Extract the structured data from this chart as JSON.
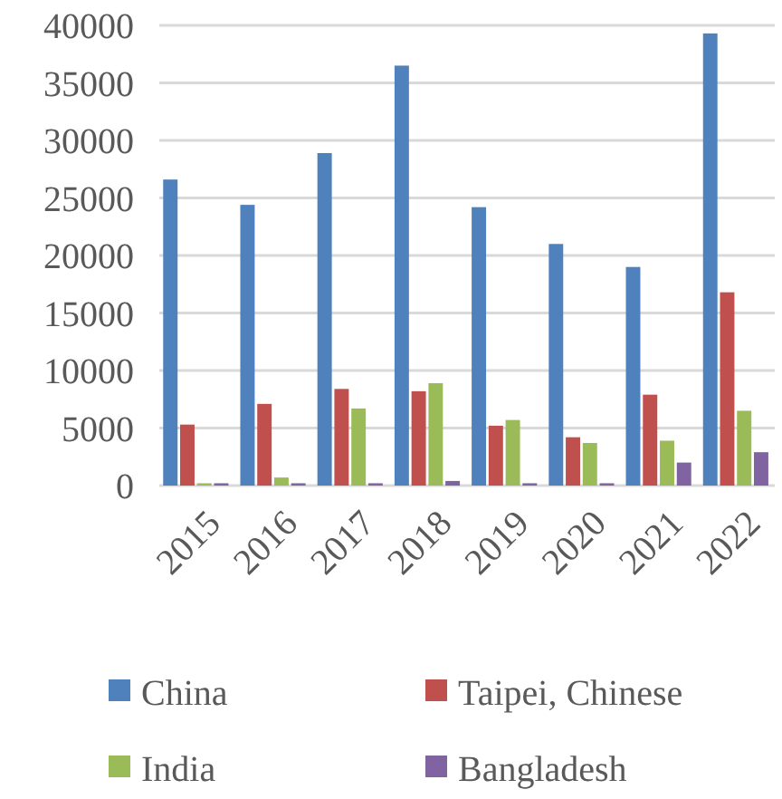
{
  "chart_data": {
    "type": "bar",
    "categories": [
      "2015",
      "2016",
      "2017",
      "2018",
      "2019",
      "2020",
      "2021",
      "2022"
    ],
    "series": [
      {
        "name": "China",
        "color": "#4f81bd",
        "values": [
          26600,
          24400,
          28900,
          36500,
          24200,
          21000,
          19000,
          39300
        ]
      },
      {
        "name": "Taipei, Chinese",
        "color": "#c0504d",
        "values": [
          5300,
          7100,
          8400,
          8200,
          5200,
          4200,
          7900,
          16800
        ]
      },
      {
        "name": "India",
        "color": "#9bbb59",
        "values": [
          200,
          700,
          6700,
          8900,
          5700,
          3700,
          3900,
          6500
        ]
      },
      {
        "name": "Bangladesh",
        "color": "#8064a2",
        "values": [
          200,
          200,
          200,
          400,
          200,
          200,
          2000,
          2900
        ]
      }
    ],
    "ylim": [
      0,
      40000
    ],
    "yticks": [
      0,
      5000,
      10000,
      15000,
      20000,
      25000,
      30000,
      35000,
      40000
    ],
    "grid": "y",
    "legend": "bottom"
  }
}
